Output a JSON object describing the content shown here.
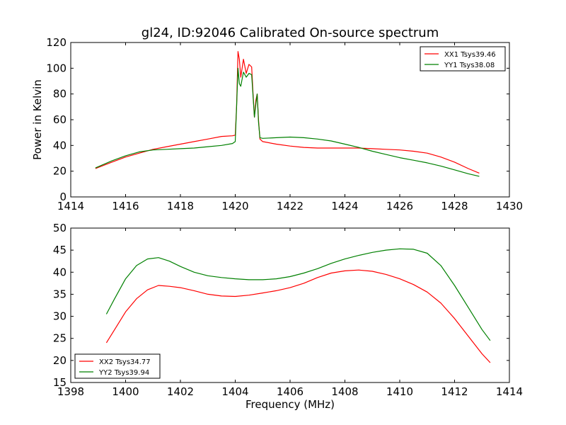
{
  "chart_data": [
    {
      "type": "line",
      "title": "gl24, ID:92046 Calibrated On-source spectrum",
      "xlabel": "",
      "ylabel": "Power in Kelvin",
      "xlim": [
        1414,
        1430
      ],
      "ylim": [
        0,
        120
      ],
      "xticks": [
        1414,
        1416,
        1418,
        1420,
        1422,
        1424,
        1426,
        1428,
        1430
      ],
      "yticks": [
        0,
        20,
        40,
        60,
        80,
        100,
        120
      ],
      "grid": false,
      "legend_position": "top-right",
      "series": [
        {
          "name": "XX1 Tsys39.46",
          "color": "#ff0000",
          "x": [
            1414.9,
            1415.5,
            1416.0,
            1416.5,
            1417.0,
            1417.5,
            1418.0,
            1418.5,
            1419.0,
            1419.5,
            1419.9,
            1420.0,
            1420.05,
            1420.1,
            1420.15,
            1420.2,
            1420.3,
            1420.4,
            1420.5,
            1420.6,
            1420.65,
            1420.7,
            1420.75,
            1420.8,
            1420.85,
            1420.9,
            1421.0,
            1421.5,
            1422.0,
            1422.5,
            1423.0,
            1423.5,
            1424.0,
            1424.5,
            1425.0,
            1425.5,
            1426.0,
            1426.5,
            1427.0,
            1427.5,
            1428.0,
            1428.5,
            1428.9
          ],
          "y": [
            22,
            27,
            31,
            34,
            37,
            39,
            41,
            43,
            45,
            47,
            47.5,
            48,
            70,
            113,
            107,
            93,
            107,
            96,
            103,
            101,
            80,
            62,
            75,
            80,
            60,
            45,
            43,
            41,
            39.5,
            38.5,
            38,
            38,
            38,
            38,
            37.5,
            37,
            36.5,
            35.5,
            34,
            31,
            27,
            22,
            18.5
          ]
        },
        {
          "name": "YY1 Tsys38.08",
          "color": "#008000",
          "x": [
            1414.9,
            1415.5,
            1416.0,
            1416.5,
            1417.0,
            1417.5,
            1418.0,
            1418.5,
            1419.0,
            1419.5,
            1419.9,
            1420.0,
            1420.05,
            1420.1,
            1420.15,
            1420.2,
            1420.3,
            1420.4,
            1420.5,
            1420.6,
            1420.65,
            1420.7,
            1420.75,
            1420.8,
            1420.85,
            1420.9,
            1421.0,
            1421.5,
            1422.0,
            1422.5,
            1423.0,
            1423.5,
            1424.0,
            1424.5,
            1425.0,
            1425.5,
            1426.0,
            1426.5,
            1427.0,
            1427.5,
            1428.0,
            1428.5,
            1428.9
          ],
          "y": [
            22.5,
            28,
            32,
            35,
            36.5,
            37,
            37.5,
            38,
            39,
            40,
            41.5,
            43,
            70,
            100,
            88,
            86,
            97,
            93,
            96,
            95,
            78,
            62,
            72,
            80,
            58,
            46,
            45.5,
            46,
            46.5,
            46,
            45,
            43.5,
            41,
            38.5,
            35.5,
            33,
            30.5,
            28.5,
            26.5,
            24,
            21,
            18,
            16
          ]
        }
      ]
    },
    {
      "type": "line",
      "title": "",
      "xlabel": "Frequency (MHz)",
      "ylabel": "",
      "xlim": [
        1398,
        1414
      ],
      "ylim": [
        15,
        50
      ],
      "xticks": [
        1398,
        1400,
        1402,
        1404,
        1406,
        1408,
        1410,
        1412,
        1414
      ],
      "yticks": [
        15,
        20,
        25,
        30,
        35,
        40,
        45,
        50
      ],
      "grid": false,
      "legend_position": "bottom-left",
      "series": [
        {
          "name": "XX2 Tsys34.77",
          "color": "#ff0000",
          "x": [
            1399.3,
            1399.6,
            1400.0,
            1400.4,
            1400.8,
            1401.2,
            1401.6,
            1402.0,
            1402.5,
            1403.0,
            1403.5,
            1404.0,
            1404.5,
            1405.0,
            1405.5,
            1406.0,
            1406.5,
            1407.0,
            1407.5,
            1408.0,
            1408.5,
            1409.0,
            1409.5,
            1410.0,
            1410.5,
            1411.0,
            1411.5,
            1412.0,
            1412.5,
            1413.0,
            1413.3
          ],
          "y": [
            24,
            27,
            31,
            34,
            36,
            37,
            36.8,
            36.5,
            35.8,
            35,
            34.6,
            34.5,
            34.8,
            35.3,
            35.8,
            36.5,
            37.5,
            38.8,
            39.8,
            40.3,
            40.5,
            40.2,
            39.5,
            38.5,
            37.2,
            35.5,
            33,
            29.5,
            25.5,
            21.5,
            19.5
          ]
        },
        {
          "name": "YY2 Tsys39.94",
          "color": "#008000",
          "x": [
            1399.3,
            1399.6,
            1400.0,
            1400.4,
            1400.8,
            1401.2,
            1401.6,
            1402.0,
            1402.5,
            1403.0,
            1403.5,
            1404.0,
            1404.5,
            1405.0,
            1405.5,
            1406.0,
            1406.5,
            1407.0,
            1407.5,
            1408.0,
            1408.5,
            1409.0,
            1409.5,
            1410.0,
            1410.5,
            1411.0,
            1411.5,
            1412.0,
            1412.5,
            1413.0,
            1413.3
          ],
          "y": [
            30.5,
            34,
            38.5,
            41.5,
            43,
            43.3,
            42.5,
            41.3,
            40,
            39.2,
            38.8,
            38.5,
            38.3,
            38.3,
            38.5,
            39,
            39.8,
            40.8,
            42,
            43,
            43.8,
            44.5,
            45,
            45.3,
            45.2,
            44.3,
            41.5,
            37,
            32,
            27,
            24.5
          ]
        }
      ]
    }
  ]
}
